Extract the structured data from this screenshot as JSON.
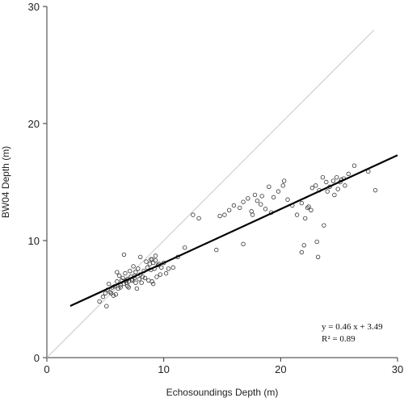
{
  "chart_data": {
    "type": "scatter",
    "xlabel": "Echosoundings Depth (m)",
    "ylabel": "BW04 Depth (m)",
    "xlim": [
      0,
      30
    ],
    "ylim": [
      0,
      30
    ],
    "xticks": [
      "0",
      "10",
      "20",
      "30"
    ],
    "yticks": [
      "0",
      "10",
      "20",
      "30"
    ],
    "grid": false,
    "reference_line": {
      "x": [
        0,
        28
      ],
      "y": [
        0,
        28
      ],
      "color": "#c8c8c8"
    },
    "fit_line": {
      "slope": 0.46,
      "intercept": 3.49,
      "x": [
        2,
        30
      ],
      "color": "#000000"
    },
    "annotations": {
      "equation": "y = 0.46 x + 3.49",
      "r_squared": "R² = 0.89"
    },
    "points": {
      "x": [
        4.5,
        4.8,
        5.0,
        5.2,
        5.3,
        5.5,
        5.6,
        5.8,
        5.9,
        6.0,
        6.1,
        6.2,
        6.3,
        6.4,
        6.5,
        6.6,
        6.7,
        6.8,
        6.9,
        7.0,
        7.1,
        7.2,
        7.3,
        7.4,
        7.5,
        7.6,
        7.8,
        7.9,
        8.0,
        8.2,
        8.3,
        8.5,
        8.6,
        8.8,
        8.9,
        9.0,
        9.1,
        9.2,
        9.3,
        9.5,
        9.6,
        9.8,
        10.0,
        10.2,
        10.4,
        5.1,
        5.7,
        6.3,
        6.9,
        7.3,
        7.7,
        8.1,
        8.7,
        9.1,
        9.4,
        5.4,
        6.0,
        6.6,
        7.0,
        7.6,
        8.4,
        9.0,
        9.7,
        6.8,
        7.5,
        8.0,
        8.9,
        9.3,
        10.8,
        11.2,
        11.8,
        12.5,
        13.0,
        14.5,
        15.2,
        15.6,
        16.0,
        16.5,
        16.8,
        17.2,
        17.5,
        17.8,
        18.0,
        18.3,
        18.7,
        19.0,
        19.4,
        19.8,
        20.2,
        20.6,
        21.0,
        21.4,
        21.8,
        22.1,
        22.4,
        22.7,
        23.0,
        23.3,
        23.6,
        23.9,
        24.2,
        24.5,
        24.8,
        25.1,
        25.4,
        25.8,
        26.3,
        27.5,
        28.1,
        22.3,
        22.6,
        23.1,
        23.2,
        24.9,
        25.5,
        21.8,
        22.0,
        16.8,
        14.8,
        20.3,
        19.2,
        18.4,
        17.6,
        24.0,
        24.6,
        25.2,
        23.7
      ],
      "y": [
        4.8,
        5.2,
        5.5,
        5.8,
        6.3,
        5.5,
        6.0,
        6.1,
        5.4,
        6.5,
        5.9,
        7.0,
        6.2,
        6.6,
        6.8,
        6.3,
        7.2,
        6.4,
        6.7,
        6.5,
        7.4,
        6.9,
        6.6,
        7.8,
        6.8,
        7.3,
        7.6,
        6.7,
        7.1,
        6.9,
        7.4,
        8.2,
        7.7,
        8.0,
        7.5,
        8.4,
        8.1,
        7.6,
        8.3,
        7.9,
        8.0,
        7.7,
        8.1,
        7.2,
        7.6,
        4.4,
        5.3,
        6.0,
        6.1,
        6.7,
        5.9,
        6.4,
        6.6,
        6.3,
        6.9,
        5.6,
        7.3,
        8.8,
        6.0,
        6.4,
        6.8,
        6.5,
        7.1,
        6.6,
        7.0,
        8.6,
        8.4,
        8.7,
        7.7,
        8.6,
        9.4,
        12.2,
        11.9,
        9.2,
        12.2,
        12.6,
        13.0,
        12.8,
        13.3,
        13.6,
        12.5,
        13.9,
        13.4,
        13.1,
        12.7,
        14.6,
        13.7,
        14.2,
        14.7,
        13.5,
        13.0,
        12.2,
        13.2,
        11.9,
        12.9,
        14.5,
        14.7,
        14.3,
        15.4,
        15.0,
        14.6,
        15.1,
        15.4,
        15.0,
        15.3,
        15.7,
        16.4,
        15.9,
        14.3,
        12.8,
        12.6,
        9.9,
        8.6,
        14.4,
        14.7,
        9.0,
        9.6,
        9.7,
        12.1,
        15.1,
        12.4,
        13.8,
        12.2,
        14.2,
        13.9,
        15.2,
        11.3
      ]
    }
  }
}
